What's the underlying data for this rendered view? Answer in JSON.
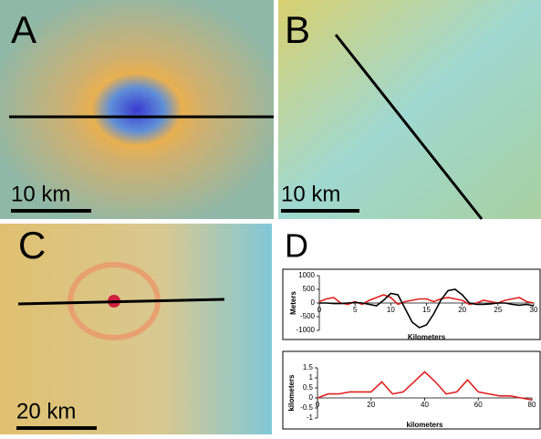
{
  "panels": [
    {
      "label": "A",
      "scale": "10 km"
    },
    {
      "label": "B",
      "scale": "10 km"
    },
    {
      "label": "C",
      "scale": "20 km"
    },
    {
      "label": "D"
    }
  ],
  "chart_data": [
    {
      "type": "line",
      "x_label": "Kilometers",
      "y_label": "Meters",
      "xlim": [
        0,
        30
      ],
      "xticks": [
        0,
        5,
        10,
        15,
        20,
        25,
        30
      ],
      "ylim": [
        -1000,
        1000
      ],
      "yticks": [
        -1000,
        -500,
        0,
        500,
        1000
      ],
      "x": [
        0,
        1,
        2,
        3,
        4,
        5,
        6,
        7,
        8,
        9,
        10,
        11,
        12,
        13,
        14,
        15,
        16,
        17,
        18,
        19,
        20,
        21,
        22,
        23,
        24,
        25,
        26,
        27,
        28,
        29,
        30
      ],
      "series": [
        {
          "color": "#e02020",
          "values": [
            50,
            150,
            200,
            0,
            -50,
            50,
            -50,
            100,
            200,
            300,
            200,
            -50,
            50,
            100,
            150,
            150,
            50,
            150,
            200,
            150,
            100,
            -50,
            0,
            100,
            50,
            0,
            100,
            150,
            200,
            50,
            0
          ]
        },
        {
          "color": "#000000",
          "values": [
            0,
            0,
            -20,
            -20,
            0,
            20,
            0,
            -50,
            -100,
            100,
            350,
            300,
            -200,
            -700,
            -900,
            -800,
            -400,
            100,
            450,
            500,
            300,
            0,
            -50,
            -50,
            -30,
            0,
            0,
            -50,
            -80,
            -50,
            -100
          ]
        }
      ]
    },
    {
      "type": "line",
      "x_label": "kilometers",
      "y_label": "kilometers",
      "xlim": [
        0,
        80
      ],
      "xticks": [
        0,
        20,
        40,
        60,
        80
      ],
      "ylim": [
        -1,
        1.5
      ],
      "yticks": [
        -1,
        -0.5,
        0,
        0.5,
        1,
        1.5
      ],
      "x": [
        0,
        4,
        8,
        12,
        16,
        20,
        24,
        28,
        32,
        36,
        40,
        44,
        48,
        52,
        56,
        60,
        64,
        68,
        72,
        76,
        80
      ],
      "series": [
        {
          "color": "#e02020",
          "values": [
            0,
            0.2,
            0.2,
            0.3,
            0.3,
            0.3,
            0.8,
            0.2,
            0.3,
            0.8,
            1.3,
            0.8,
            0.2,
            0.3,
            0.9,
            0.3,
            0.2,
            0.1,
            0.1,
            0,
            -0.1
          ]
        }
      ]
    }
  ]
}
